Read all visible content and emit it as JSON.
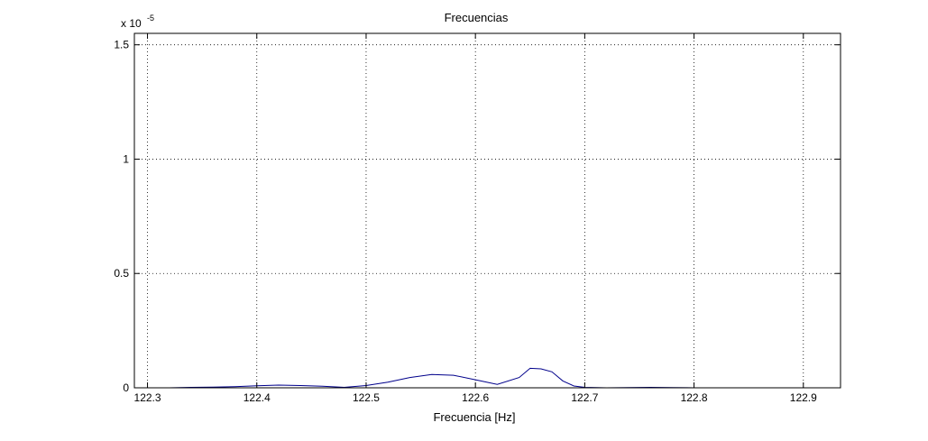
{
  "chart_data": {
    "type": "line",
    "title": "Frecuencias",
    "xlabel": "Frecuencia [Hz]",
    "ylabel": "",
    "y_exponent_label": {
      "base": "x 10",
      "exponent": "-5"
    },
    "xlim": [
      122.288,
      122.934
    ],
    "ylim": [
      0,
      1.55
    ],
    "x_ticks": [
      122.3,
      122.4,
      122.5,
      122.6,
      122.7,
      122.8,
      122.9
    ],
    "x_tick_labels": [
      "122.3",
      "122.4",
      "122.5",
      "122.6",
      "122.7",
      "122.8",
      "122.9"
    ],
    "y_ticks": [
      0,
      0.5,
      1,
      1.5
    ],
    "y_tick_labels": [
      "0",
      "0.5",
      "1",
      "1.5"
    ],
    "grid": true,
    "legend": "none",
    "series": [
      {
        "color": "#00008b",
        "x": [
          122.288,
          122.3,
          122.32,
          122.34,
          122.36,
          122.38,
          122.4,
          122.42,
          122.44,
          122.46,
          122.48,
          122.5,
          122.52,
          122.54,
          122.56,
          122.58,
          122.6,
          122.62,
          122.64,
          122.65,
          122.66,
          122.67,
          122.68,
          122.69,
          122.7,
          122.72,
          122.74,
          122.76,
          122.78,
          122.8,
          122.82,
          122.84,
          122.86,
          122.88,
          122.9,
          122.92,
          122.934
        ],
        "y": [
          0,
          0,
          0,
          0.002,
          0.003,
          0.005,
          0.009,
          0.012,
          0.01,
          0.007,
          0.002,
          0.01,
          0.025,
          0.045,
          0.058,
          0.055,
          0.035,
          0.015,
          0.045,
          0.085,
          0.083,
          0.07,
          0.03,
          0.008,
          0.002,
          0,
          0.001,
          0.002,
          0.001,
          0,
          0,
          0,
          0,
          0,
          0,
          0,
          0
        ]
      }
    ]
  }
}
